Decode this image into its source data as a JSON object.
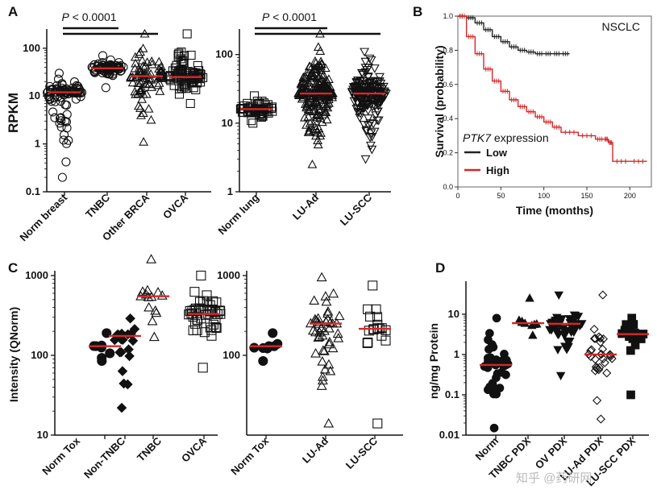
{
  "panels": {
    "a": "A",
    "b": "B",
    "c": "C",
    "d": "D"
  },
  "watermark": "知乎 @药研网",
  "chart_data": [
    {
      "id": "A1",
      "type": "scatter",
      "ylabel": "RPKM",
      "yscale": "log",
      "ylim": [
        0.1,
        200
      ],
      "yticks": [
        0.1,
        1,
        10,
        100
      ],
      "ytick_labels": [
        "0.1",
        "1",
        "10",
        "100"
      ],
      "categories": [
        "Norm breast",
        "TNBC",
        "Other BRCA",
        "OVCA"
      ],
      "markers": [
        "circle-open",
        "circle-open",
        "triangle-open",
        "square-open"
      ],
      "medians": [
        12,
        38,
        26,
        25
      ],
      "spreads": [
        [
          0.2,
          30
        ],
        [
          15,
          70
        ],
        [
          1.1,
          200
        ],
        [
          7,
          200
        ]
      ],
      "counts": [
        90,
        70,
        80,
        90
      ],
      "significance": {
        "label": "P < 0.0001",
        "from": 0,
        "to": [
          1,
          2
        ]
      },
      "median_color": "#d62728"
    },
    {
      "id": "A2",
      "type": "scatter",
      "yscale": "log",
      "ylim": [
        1,
        200
      ],
      "yticks": [
        1,
        10,
        100
      ],
      "ytick_labels": [
        "1",
        "10",
        "100"
      ],
      "categories": [
        "Norm lung",
        "LU-Ad",
        "LU-SCC"
      ],
      "markers": [
        "square-open",
        "triangle-open",
        "triangle-down-open"
      ],
      "medians": [
        16,
        27,
        27
      ],
      "spreads": [
        [
          10,
          25
        ],
        [
          2.5,
          200
        ],
        [
          3,
          110
        ]
      ],
      "counts": [
        60,
        200,
        180
      ],
      "significance": {
        "label": "P < 0.0001",
        "from": 0,
        "to": [
          1,
          2
        ]
      },
      "median_color": "#d62728"
    },
    {
      "id": "B",
      "type": "line",
      "title": "NSCLC",
      "xlabel": "Time (months)",
      "ylabel": "Survival (probability)",
      "xlim": [
        0,
        225
      ],
      "ylim": [
        0,
        1
      ],
      "xticks": [
        0,
        50,
        100,
        150,
        200
      ],
      "yticks": [
        0,
        0.2,
        0.4,
        0.6,
        0.8,
        1.0
      ],
      "ytick_labels": [
        "0.0",
        "0.2",
        "0.4",
        "0.6",
        "0.8",
        "1.0"
      ],
      "legend_title_italic": "PTK7",
      "legend_title_rest": " expression",
      "series": [
        {
          "name": "Low",
          "color": "#222222",
          "x": [
            0,
            10,
            20,
            30,
            40,
            50,
            60,
            70,
            80,
            90,
            100,
            110,
            120,
            130
          ],
          "y": [
            1.0,
            0.99,
            0.96,
            0.92,
            0.88,
            0.85,
            0.82,
            0.8,
            0.79,
            0.78,
            0.78,
            0.78,
            0.78,
            0.78
          ]
        },
        {
          "name": "High",
          "color": "#d62728",
          "x": [
            0,
            10,
            20,
            30,
            40,
            50,
            60,
            70,
            80,
            90,
            100,
            110,
            120,
            140,
            160,
            170,
            175,
            180,
            200,
            220
          ],
          "y": [
            1.0,
            0.88,
            0.78,
            0.69,
            0.62,
            0.56,
            0.51,
            0.47,
            0.44,
            0.41,
            0.38,
            0.35,
            0.32,
            0.3,
            0.28,
            0.28,
            0.26,
            0.15,
            0.15,
            0.15
          ]
        }
      ]
    },
    {
      "id": "C1",
      "type": "scatter",
      "ylabel": "Intensity (QNorm)",
      "yscale": "log",
      "ylim": [
        10,
        1000
      ],
      "yticks": [
        10,
        100,
        1000
      ],
      "ytick_labels": [
        "10",
        "100",
        "1000"
      ],
      "categories": [
        "Norm Tox",
        "Non-TNBC",
        "TNBC",
        "OVCA"
      ],
      "markers": [
        "circle-filled",
        "diamond-filled",
        "triangle-open",
        "square-open"
      ],
      "medians": [
        130,
        175,
        550,
        330
      ],
      "spreads": [
        [
          85,
          190
        ],
        [
          22,
          290
        ],
        [
          170,
          1600
        ],
        [
          70,
          1000
        ]
      ],
      "counts": [
        8,
        20,
        14,
        48
      ],
      "median_color": "#d62728"
    },
    {
      "id": "C2",
      "type": "scatter",
      "yscale": "log",
      "ylim": [
        10,
        1000
      ],
      "yticks": [
        100,
        1000
      ],
      "ytick_labels": [
        "100",
        "1000"
      ],
      "categories": [
        "Norm Tox",
        "LU-Ad",
        "LU-SCC"
      ],
      "markers": [
        "circle-filled",
        "triangle-open",
        "square-open"
      ],
      "medians": [
        130,
        250,
        215
      ],
      "spreads": [
        [
          85,
          190
        ],
        [
          14,
          950
        ],
        [
          14,
          750
        ]
      ],
      "counts": [
        8,
        45,
        18
      ],
      "median_color": "#d62728"
    },
    {
      "id": "D",
      "type": "scatter",
      "ylabel": "ng/mg Protein",
      "yscale": "log",
      "ylim": [
        0.01,
        50
      ],
      "yticks": [
        0.01,
        0.1,
        1,
        10
      ],
      "ytick_labels": [
        "0.01",
        "0.1",
        "1",
        "10"
      ],
      "categories": [
        "Norm",
        "TNBC PDX",
        "OV PDX",
        "LU-Ad PDX",
        "LU-SCC PDX"
      ],
      "markers": [
        "circle-filled",
        "triangle-filled",
        "triangle-down-filled",
        "diamond-open",
        "square-filled"
      ],
      "medians": [
        0.55,
        6,
        5.8,
        1.0,
        3.2
      ],
      "spreads": [
        [
          0.015,
          8
        ],
        [
          3,
          25
        ],
        [
          0.3,
          30
        ],
        [
          0.025,
          30
        ],
        [
          0.1,
          8
        ]
      ],
      "counts": [
        35,
        9,
        45,
        30,
        20
      ],
      "median_color": "#d62728"
    }
  ]
}
